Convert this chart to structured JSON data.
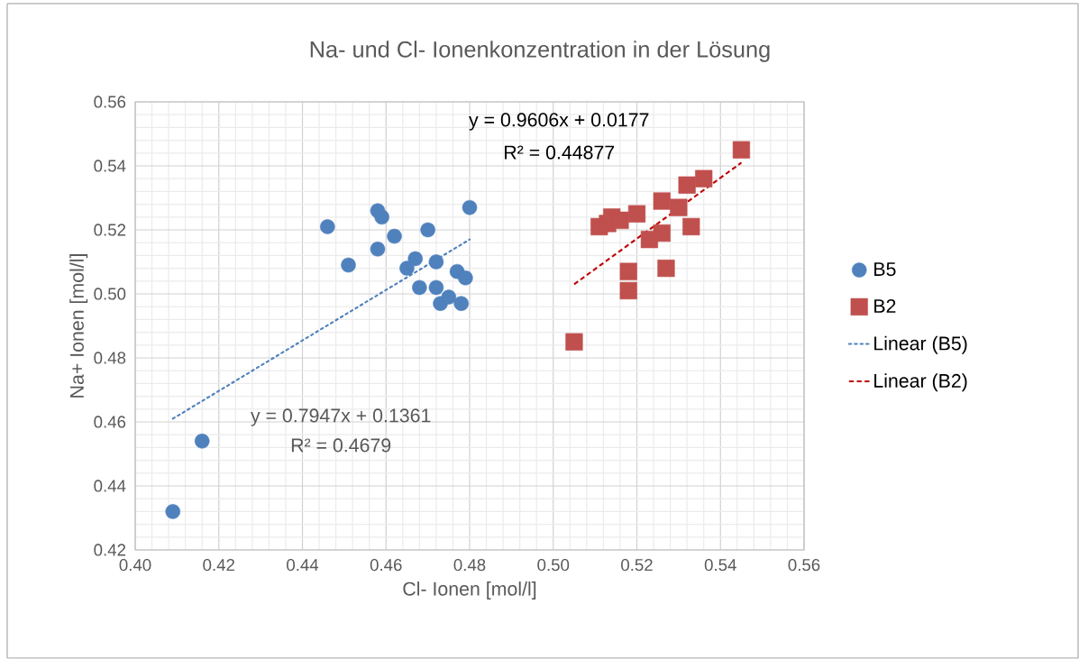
{
  "chart_data": {
    "type": "scatter",
    "title": "Na- und Cl- Ionenkonzentration in der Lösung",
    "xlabel": "Cl- Ionen [mol/l]",
    "ylabel": "Na+ Ionen [mol/l]",
    "xlim": [
      0.4,
      0.56
    ],
    "ylim": [
      0.42,
      0.56
    ],
    "xticks": [
      {
        "value": 0.4,
        "label": "0.40"
      },
      {
        "value": 0.42,
        "label": "0.42"
      },
      {
        "value": 0.44,
        "label": "0.44"
      },
      {
        "value": 0.46,
        "label": "0.46"
      },
      {
        "value": 0.48,
        "label": "0.48"
      },
      {
        "value": 0.5,
        "label": "0.50"
      },
      {
        "value": 0.52,
        "label": "0.52"
      },
      {
        "value": 0.54,
        "label": "0.54"
      },
      {
        "value": 0.56,
        "label": "0.56"
      }
    ],
    "yticks": [
      {
        "value": 0.42,
        "label": "0.42"
      },
      {
        "value": 0.44,
        "label": "0.44"
      },
      {
        "value": 0.46,
        "label": "0.46"
      },
      {
        "value": 0.48,
        "label": "0.48"
      },
      {
        "value": 0.5,
        "label": "0.50"
      },
      {
        "value": 0.52,
        "label": "0.52"
      },
      {
        "value": 0.54,
        "label": "0.54"
      },
      {
        "value": 0.56,
        "label": "0.56"
      }
    ],
    "grid": true,
    "legend": "right",
    "series": [
      {
        "name": "B5",
        "marker": "circle",
        "color": "#4f81bd",
        "x": [
          0.409,
          0.416,
          0.446,
          0.451,
          0.458,
          0.459,
          0.458,
          0.462,
          0.47,
          0.48,
          0.465,
          0.467,
          0.472,
          0.468,
          0.472,
          0.473,
          0.475,
          0.477,
          0.479,
          0.478
        ],
        "values": [
          0.432,
          0.454,
          0.521,
          0.509,
          0.526,
          0.524,
          0.514,
          0.518,
          0.52,
          0.527,
          0.508,
          0.511,
          0.51,
          0.502,
          0.502,
          0.497,
          0.499,
          0.507,
          0.505,
          0.497
        ]
      },
      {
        "name": "B2",
        "marker": "square",
        "color": "#c0504d",
        "x": [
          0.505,
          0.511,
          0.513,
          0.514,
          0.516,
          0.52,
          0.526,
          0.53,
          0.533,
          0.526,
          0.523,
          0.532,
          0.536,
          0.545,
          0.518,
          0.518,
          0.527
        ],
        "values": [
          0.485,
          0.521,
          0.522,
          0.524,
          0.523,
          0.525,
          0.529,
          0.527,
          0.521,
          0.519,
          0.517,
          0.534,
          0.536,
          0.545,
          0.507,
          0.501,
          0.508
        ]
      },
      {
        "name": "Linear  (B5)",
        "type": "line",
        "marker": "none",
        "line_style": "dotted",
        "color": "#4f81bd",
        "x": [
          0.409,
          0.48
        ],
        "values": [
          0.461,
          0.517
        ]
      },
      {
        "name": "Linear  (B2)",
        "type": "line",
        "marker": "none",
        "line_style": "dashed",
        "color": "#c00000",
        "x": [
          0.505,
          0.545
        ],
        "values": [
          0.503,
          0.541
        ]
      }
    ],
    "annotations": [
      "y = 0.7947x + 0.1361",
      "R² = 0.4679",
      "y = 0.9606x + 0.0177",
      "R² = 0.44877"
    ]
  }
}
